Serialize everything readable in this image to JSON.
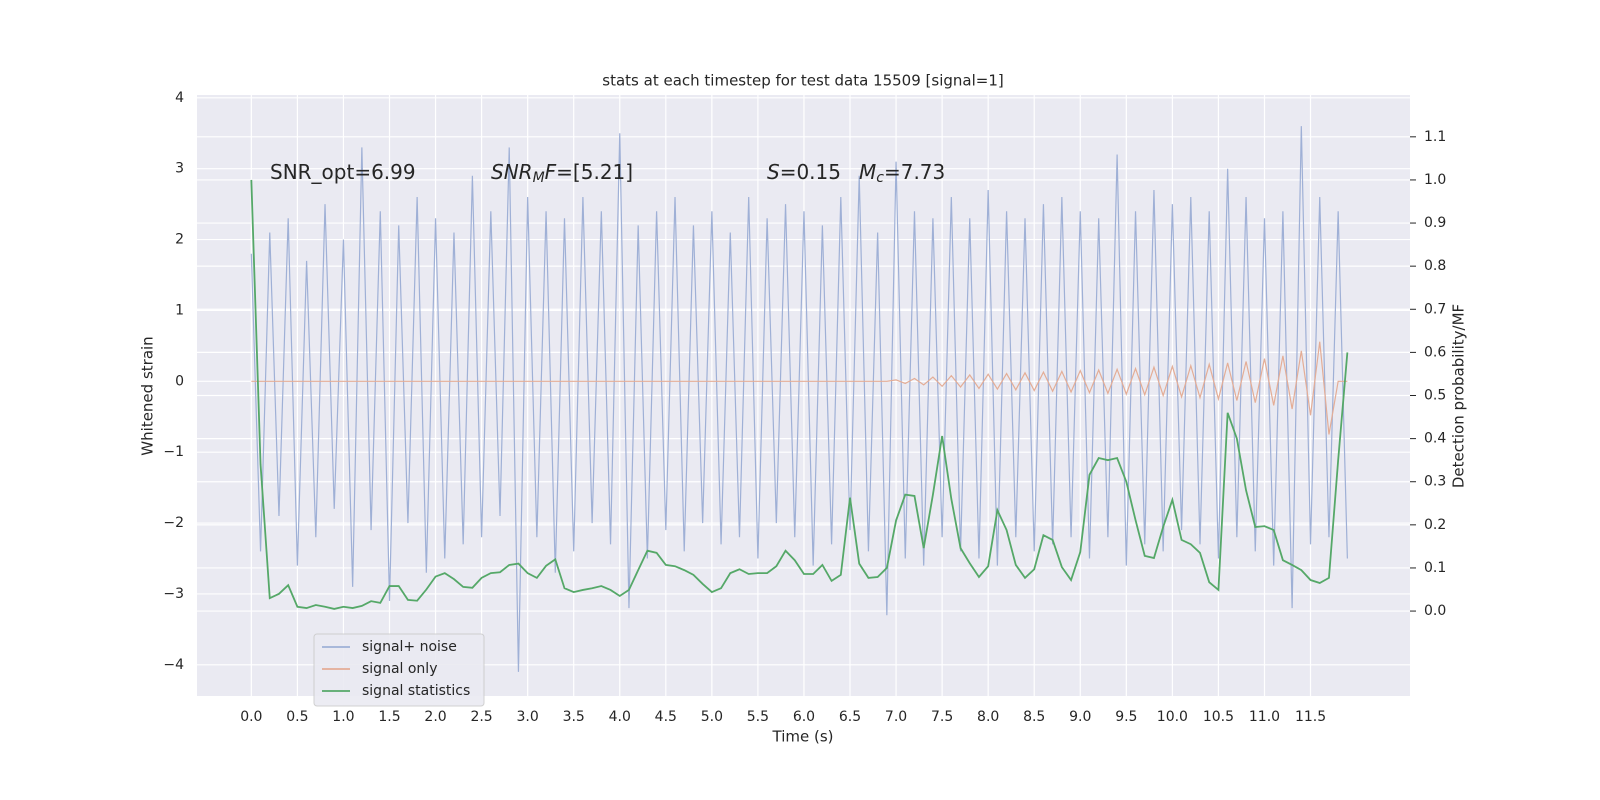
{
  "chart_data": {
    "type": "line",
    "title": "stats at each timestep for test data 15509 [signal=1]",
    "xlabel": "Time (s)",
    "ylabel": "Whitened strain",
    "y2label": "Detection probability/MF",
    "annotations": [
      [
        "SNR_opt=6.99"
      ],
      [
        "SNR",
        "M",
        "F",
        "=[5.21]"
      ],
      [
        "S",
        "=0.15"
      ],
      [
        "M",
        "c",
        "=7.73"
      ]
    ],
    "grid": true,
    "legend": "lower left",
    "xlim": [
      -0.59,
      12.58
    ],
    "ylim": [
      -4.44,
      4.04
    ],
    "y2lim": [
      -0.197,
      1.197
    ],
    "xticks": [
      {
        "value": 0,
        "label": "0.0"
      },
      0.5,
      {
        "value": 1,
        "label": "1.0"
      },
      1.5,
      {
        "value": 2,
        "label": "2.0"
      },
      2.5,
      {
        "value": 3,
        "label": "3.0"
      },
      3.5,
      {
        "value": 4,
        "label": "4.0"
      },
      4.5,
      {
        "value": 5,
        "label": "5.0"
      },
      5.5,
      {
        "value": 6,
        "label": "6.0"
      },
      6.5,
      {
        "value": 7,
        "label": "7.0"
      },
      7.5,
      {
        "value": 8,
        "label": "8.0"
      },
      8.5,
      {
        "value": 9,
        "label": "9.0"
      },
      9.5,
      {
        "value": 10,
        "label": "10.0"
      },
      10.5,
      {
        "value": 11,
        "label": "11.0"
      },
      11.5
    ],
    "yticks": [
      {
        "value": -4,
        "label": "−4"
      },
      {
        "value": -3,
        "label": "−3"
      },
      {
        "value": -2,
        "label": "−2"
      },
      {
        "value": -1,
        "label": "−1"
      },
      0,
      1,
      2,
      3,
      4
    ],
    "y2ticks": [
      {
        "value": 0,
        "label": "0.0"
      },
      0.1,
      0.2,
      0.3,
      0.4,
      0.5,
      0.6,
      0.7,
      0.8,
      0.9,
      {
        "value": 1,
        "label": "1.0"
      },
      1.1
    ],
    "x": [
      0,
      0.1,
      0.2,
      0.3,
      0.4,
      0.5,
      0.6,
      0.7,
      0.8,
      0.9,
      1,
      1.1,
      1.2,
      1.3,
      1.4,
      1.5,
      1.6,
      1.7,
      1.8,
      1.9,
      2,
      2.1,
      2.2,
      2.3,
      2.4,
      2.5,
      2.6,
      2.7,
      2.8,
      2.9,
      3,
      3.1,
      3.2,
      3.3,
      3.4,
      3.5,
      3.6,
      3.7,
      3.8,
      3.9,
      4,
      4.1,
      4.2,
      4.3,
      4.4,
      4.5,
      4.6,
      4.7,
      4.8,
      4.9,
      5,
      5.1,
      5.2,
      5.3,
      5.4,
      5.5,
      5.6,
      5.7,
      5.8,
      5.9,
      6,
      6.1,
      6.2,
      6.3,
      6.4,
      6.5,
      6.6,
      6.7,
      6.8,
      6.9,
      7,
      7.1,
      7.2,
      7.3,
      7.4,
      7.5,
      7.6,
      7.7,
      7.8,
      7.9,
      8,
      8.1,
      8.2,
      8.3,
      8.4,
      8.5,
      8.6,
      8.7,
      8.8,
      8.9,
      9,
      9.1,
      9.2,
      9.3,
      9.4,
      9.5,
      9.6,
      9.7,
      9.8,
      9.9,
      10,
      10.1,
      10.2,
      10.3,
      10.4,
      10.5,
      10.6,
      10.7,
      10.8,
      10.9,
      11,
      11.1,
      11.2,
      11.3,
      11.4,
      11.5,
      11.6,
      11.7,
      11.8,
      11.9
    ],
    "series": [
      {
        "name": "signal+ noise",
        "color": "#9fb0d6",
        "values": [
          1.8,
          -2.4,
          2.1,
          -1.9,
          2.3,
          -2.6,
          1.7,
          -2.2,
          2.5,
          -1.8,
          2.0,
          -2.9,
          3.3,
          -2.1,
          2.4,
          -3.1,
          2.2,
          -2.0,
          2.6,
          -2.7,
          2.3,
          -2.5,
          2.1,
          -2.3,
          2.9,
          -2.2,
          2.4,
          -1.9,
          3.3,
          -4.1,
          2.6,
          -2.2,
          2.4,
          -2.7,
          2.3,
          -2.4,
          2.6,
          -2.0,
          2.4,
          -2.3,
          3.5,
          -3.2,
          2.2,
          -2.5,
          2.4,
          -2.1,
          2.6,
          -2.4,
          2.2,
          -2.0,
          2.4,
          -2.3,
          2.1,
          -2.2,
          2.6,
          -2.5,
          2.3,
          -2.0,
          2.5,
          -2.2,
          2.4,
          -2.6,
          2.2,
          -2.3,
          2.6,
          -2.1,
          2.9,
          -2.4,
          2.1,
          -3.3,
          3.1,
          -2.5,
          2.4,
          -2.6,
          2.3,
          -2.2,
          2.6,
          -2.4,
          2.3,
          -2.5,
          2.7,
          -2.6,
          2.4,
          -2.2,
          2.3,
          -2.4,
          2.5,
          -2.3,
          2.6,
          -2.2,
          2.4,
          -2.5,
          2.3,
          -2.2,
          3.2,
          -2.6,
          2.4,
          -2.3,
          2.7,
          -2.4,
          2.5,
          -2.1,
          2.6,
          -2.3,
          2.4,
          -2.5,
          3.0,
          -2.2,
          2.6,
          -2.4,
          2.3,
          -2.6,
          2.4,
          -3.2,
          3.6,
          -2.3,
          2.6,
          -2.2,
          2.4,
          -2.5
        ]
      },
      {
        "name": "signal only",
        "color": "#e4ad96",
        "values": [
          0,
          0,
          0,
          0,
          0,
          0,
          0,
          0,
          0,
          0,
          0,
          0,
          0,
          0,
          0,
          0,
          0,
          0,
          0,
          0,
          0,
          0,
          0,
          0,
          0,
          0,
          0,
          0,
          0,
          0,
          0,
          0,
          0,
          0,
          0,
          0,
          0,
          0,
          0,
          0,
          0,
          0,
          0,
          0,
          0,
          0,
          0,
          0,
          0,
          0,
          0,
          0,
          0,
          0,
          0,
          0,
          0,
          0,
          0,
          0,
          0,
          0,
          0,
          0,
          0,
          0,
          0,
          0,
          0,
          0,
          0.02,
          -0.03,
          0.04,
          -0.05,
          0.06,
          -0.07,
          0.08,
          -0.08,
          0.09,
          -0.1,
          0.1,
          -0.11,
          0.11,
          -0.12,
          0.12,
          -0.13,
          0.13,
          -0.14,
          0.14,
          -0.15,
          0.15,
          -0.16,
          0.16,
          -0.17,
          0.17,
          -0.18,
          0.18,
          -0.19,
          0.2,
          -0.2,
          0.21,
          -0.22,
          0.22,
          -0.23,
          0.24,
          -0.25,
          0.26,
          -0.27,
          0.28,
          -0.3,
          0.32,
          -0.34,
          0.36,
          -0.39,
          0.43,
          -0.48,
          0.56,
          -0.75,
          0,
          0
        ]
      },
      {
        "name": "signal statistics",
        "color": "#55a868",
        "axis": "y2",
        "values": [
          1.0,
          0.34,
          0.03,
          0.04,
          0.06,
          0.01,
          0.007,
          0.014,
          0.01,
          0.005,
          0.01,
          0.007,
          0.012,
          0.023,
          0.019,
          0.058,
          0.058,
          0.026,
          0.024,
          0.05,
          0.08,
          0.088,
          0.074,
          0.056,
          0.054,
          0.077,
          0.088,
          0.09,
          0.107,
          0.11,
          0.088,
          0.077,
          0.105,
          0.12,
          0.053,
          0.044,
          0.049,
          0.053,
          0.058,
          0.049,
          0.035,
          0.049,
          0.095,
          0.14,
          0.135,
          0.107,
          0.104,
          0.095,
          0.084,
          0.063,
          0.044,
          0.053,
          0.088,
          0.097,
          0.086,
          0.088,
          0.088,
          0.104,
          0.14,
          0.118,
          0.086,
          0.086,
          0.107,
          0.07,
          0.084,
          0.263,
          0.11,
          0.077,
          0.079,
          0.1,
          0.21,
          0.27,
          0.267,
          0.146,
          0.27,
          0.406,
          0.26,
          0.146,
          0.111,
          0.079,
          0.104,
          0.234,
          0.188,
          0.107,
          0.077,
          0.097,
          0.176,
          0.165,
          0.102,
          0.072,
          0.137,
          0.316,
          0.355,
          0.35,
          0.355,
          0.3,
          0.211,
          0.128,
          0.123,
          0.195,
          0.258,
          0.165,
          0.155,
          0.135,
          0.067,
          0.049,
          0.46,
          0.4,
          0.28,
          0.195,
          0.197,
          0.188,
          0.118,
          0.107,
          0.095,
          0.072,
          0.065,
          0.077,
          0.35,
          0.6
        ]
      }
    ]
  }
}
